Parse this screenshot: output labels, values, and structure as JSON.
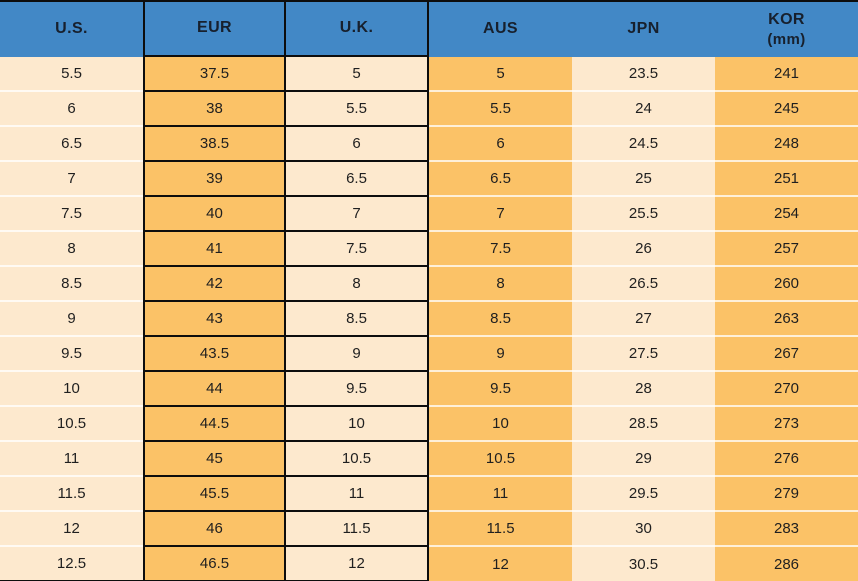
{
  "colors": {
    "header_bg": "#4288C6",
    "header_text": "#17202D",
    "cell_text": "#1F1F1F",
    "cream": "#FDE9CE",
    "orange": "#FBC267",
    "border_black": "#0D0D0D",
    "row_separator": "#FFFFFF"
  },
  "chart_data": {
    "type": "table",
    "columns": [
      {
        "key": "us",
        "label": "U.S."
      },
      {
        "key": "eur",
        "label": "EUR"
      },
      {
        "key": "uk",
        "label": "U.K."
      },
      {
        "key": "aus",
        "label": "AUS"
      },
      {
        "key": "jpn",
        "label": "JPN"
      },
      {
        "key": "kor",
        "label": "KOR",
        "sublabel": "(mm)"
      }
    ],
    "rows": [
      [
        "5.5",
        "37.5",
        "5",
        "5",
        "23.5",
        "241"
      ],
      [
        "6",
        "38",
        "5.5",
        "5.5",
        "24",
        "245"
      ],
      [
        "6.5",
        "38.5",
        "6",
        "6",
        "24.5",
        "248"
      ],
      [
        "7",
        "39",
        "6.5",
        "6.5",
        "25",
        "251"
      ],
      [
        "7.5",
        "40",
        "7",
        "7",
        "25.5",
        "254"
      ],
      [
        "8",
        "41",
        "7.5",
        "7.5",
        "26",
        "257"
      ],
      [
        "8.5",
        "42",
        "8",
        "8",
        "26.5",
        "260"
      ],
      [
        "9",
        "43",
        "8.5",
        "8.5",
        "27",
        "263"
      ],
      [
        "9.5",
        "43.5",
        "9",
        "9",
        "27.5",
        "267"
      ],
      [
        "10",
        "44",
        "9.5",
        "9.5",
        "28",
        "270"
      ],
      [
        "10.5",
        "44.5",
        "10",
        "10",
        "28.5",
        "273"
      ],
      [
        "11",
        "45",
        "10.5",
        "10.5",
        "29",
        "276"
      ],
      [
        "11.5",
        "45.5",
        "11",
        "11",
        "29.5",
        "279"
      ],
      [
        "12",
        "46",
        "11.5",
        "11.5",
        "30",
        "283"
      ],
      [
        "12.5",
        "46.5",
        "12",
        "12",
        "30.5",
        "286"
      ]
    ]
  }
}
